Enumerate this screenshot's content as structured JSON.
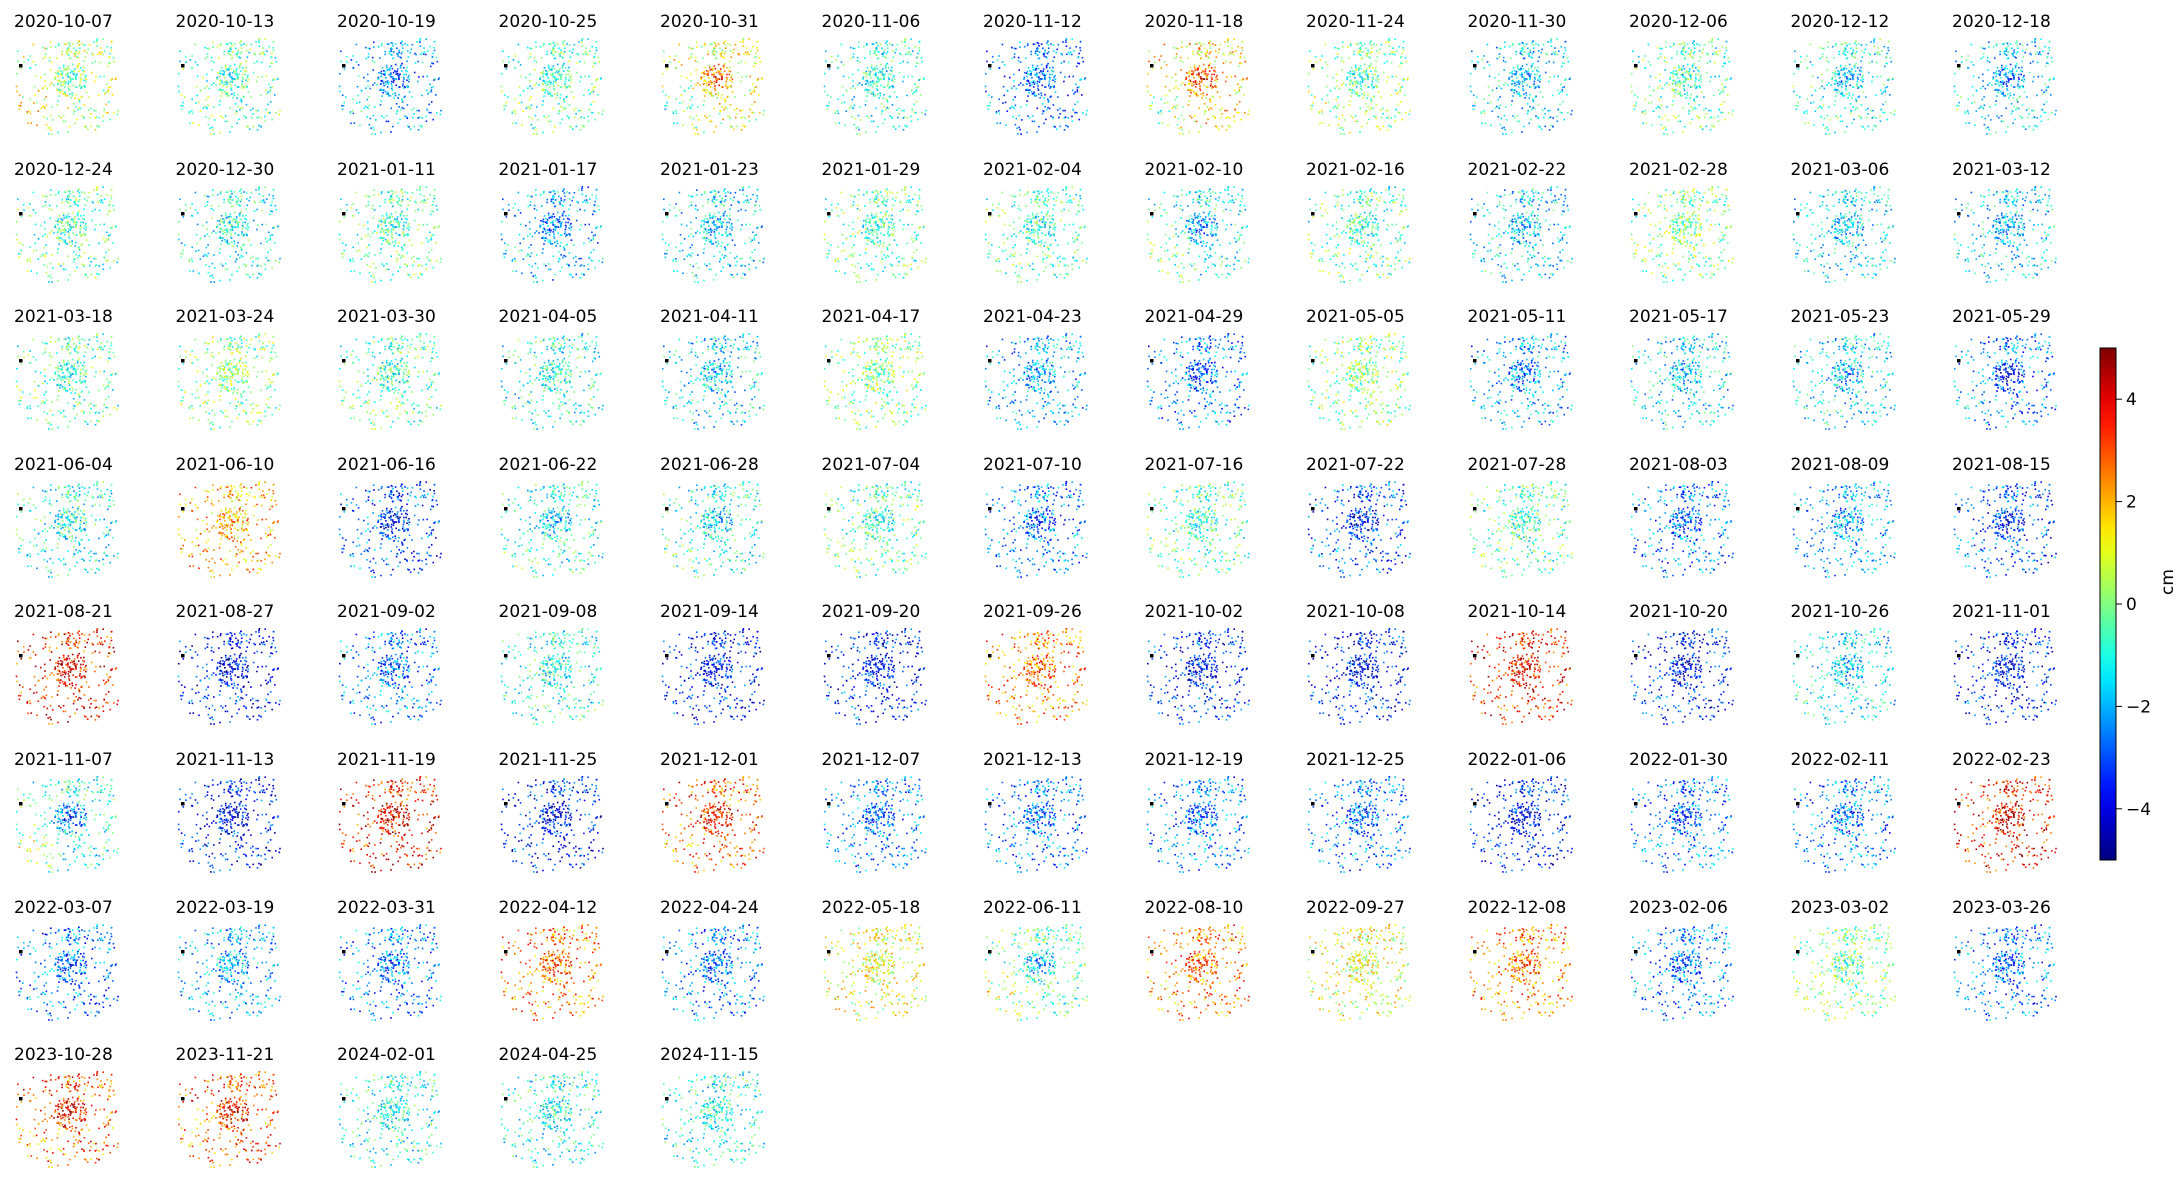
{
  "chart_data": {
    "type": "scatter",
    "layout": "small-multiples",
    "colormap": "jet",
    "clim": [
      -5,
      5
    ],
    "colorbar": {
      "label": "cm",
      "ticks": [
        -4,
        -2,
        0,
        2,
        4
      ],
      "tick_labels": [
        "−4",
        "−2",
        "0",
        "2",
        "4"
      ]
    },
    "dates": [
      "2020-10-07",
      "2020-10-13",
      "2020-10-19",
      "2020-10-25",
      "2020-10-31",
      "2020-11-06",
      "2020-11-12",
      "2020-11-18",
      "2020-11-24",
      "2020-11-30",
      "2020-12-06",
      "2020-12-12",
      "2020-12-18",
      "2020-12-24",
      "2020-12-30",
      "2021-01-11",
      "2021-01-17",
      "2021-01-23",
      "2021-01-29",
      "2021-02-04",
      "2021-02-10",
      "2021-02-16",
      "2021-02-22",
      "2021-02-28",
      "2021-03-06",
      "2021-03-12",
      "2021-03-18",
      "2021-03-24",
      "2021-03-30",
      "2021-04-05",
      "2021-04-11",
      "2021-04-17",
      "2021-04-23",
      "2021-04-29",
      "2021-05-05",
      "2021-05-11",
      "2021-05-17",
      "2021-05-23",
      "2021-05-29",
      "2021-06-04",
      "2021-06-10",
      "2021-06-16",
      "2021-06-22",
      "2021-06-28",
      "2021-07-04",
      "2021-07-10",
      "2021-07-16",
      "2021-07-22",
      "2021-07-28",
      "2021-08-03",
      "2021-08-09",
      "2021-08-15",
      "2021-08-21",
      "2021-08-27",
      "2021-09-02",
      "2021-09-08",
      "2021-09-14",
      "2021-09-20",
      "2021-09-26",
      "2021-10-02",
      "2021-10-08",
      "2021-10-14",
      "2021-10-20",
      "2021-10-26",
      "2021-11-01",
      "2021-11-07",
      "2021-11-13",
      "2021-11-19",
      "2021-11-25",
      "2021-12-01",
      "2021-12-07",
      "2021-12-13",
      "2021-12-19",
      "2021-12-25",
      "2022-01-06",
      "2022-01-30",
      "2022-02-11",
      "2022-02-23",
      "2022-03-07",
      "2022-03-19",
      "2022-03-31",
      "2022-04-12",
      "2022-04-24",
      "2022-05-18",
      "2022-06-11",
      "2022-08-10",
      "2022-09-27",
      "2022-12-08",
      "2023-02-06",
      "2023-03-02",
      "2023-03-26",
      "2023-10-28",
      "2023-11-21",
      "2024-02-01",
      "2024-04-25",
      "2024-11-15"
    ],
    "center_values": [
      -1,
      -1,
      -3,
      -1,
      4,
      -1,
      -3,
      4,
      -1,
      -2,
      -1,
      -2,
      -3,
      -1,
      -1,
      -1,
      -3,
      -2,
      -1,
      -1,
      -3,
      -1,
      -2,
      0,
      -2,
      -2,
      -1,
      0,
      -1,
      -1,
      -2,
      0,
      -2,
      -3,
      0,
      -3,
      -2,
      -2,
      -4,
      -1,
      2,
      -4,
      -2,
      -2,
      -1,
      -3,
      -1,
      -4,
      -1,
      -3,
      -2,
      -4,
      4,
      -4,
      -3,
      -1,
      -4,
      -4,
      3,
      -4,
      -4,
      4,
      -4,
      -2,
      -4,
      -4,
      -4,
      4,
      -4,
      4,
      -3,
      -3,
      -3,
      -3,
      -4,
      -3,
      -3,
      4,
      -3,
      -2,
      -3,
      3,
      -3,
      1,
      -3,
      3,
      1,
      3,
      -3,
      -1,
      -3,
      4,
      4,
      -1,
      -1,
      -1
    ],
    "west_values": [
      2,
      0,
      -1,
      0,
      -2,
      -1,
      -2,
      -1,
      1,
      -1,
      0,
      0,
      0,
      0,
      -1,
      0,
      -1,
      -1,
      0,
      0,
      1,
      0,
      -1,
      0,
      -1,
      -1,
      0,
      0,
      0,
      -1,
      -1,
      0,
      -2,
      -2,
      0,
      -1,
      -1,
      -1,
      -1,
      -1,
      2,
      -2,
      0,
      0,
      0,
      -2,
      0,
      -2,
      0,
      -2,
      -2,
      -2,
      3,
      -3,
      -2,
      -1,
      -3,
      -3,
      2,
      -3,
      -3,
      3,
      -3,
      -1,
      -3,
      2,
      -3,
      3,
      -3,
      2,
      -2,
      -2,
      -2,
      -2,
      -3,
      -2,
      -2,
      3,
      -2,
      -2,
      -2,
      2,
      -2,
      1,
      2,
      2,
      1,
      2,
      -2,
      1,
      -2,
      2,
      2,
      -1,
      -1,
      -1
    ]
  }
}
